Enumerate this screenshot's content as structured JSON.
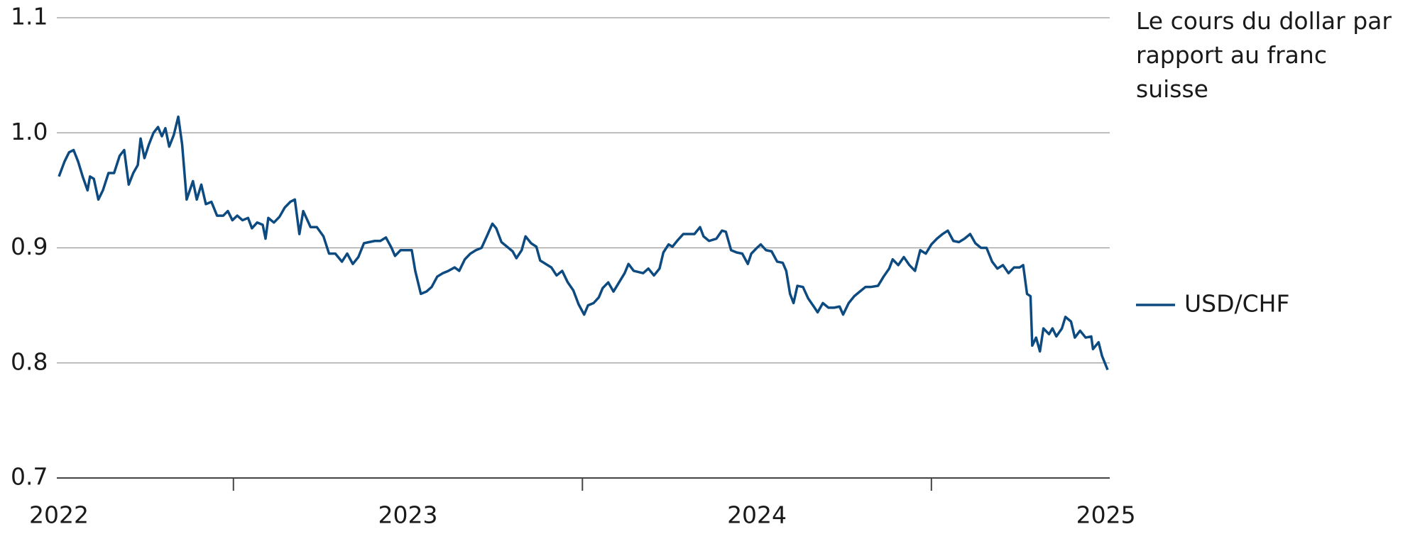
{
  "chart_data": {
    "type": "line",
    "title": "Le cours du dollar par rapport au franc suisse",
    "xlim": [
      2022,
      2025.011
    ],
    "xticks": [
      2022,
      2023,
      2024,
      2025
    ],
    "xminor_ticks": [
      2022.5,
      2023.5,
      2024.5
    ],
    "ylim": [
      0.7,
      1.1
    ],
    "yticks": [
      0.7,
      0.8,
      0.9,
      {
        "value": 1.0,
        "label": "1.0"
      },
      1.1
    ],
    "grid": true,
    "legend": "right",
    "x": [
      2022.0,
      2022.016,
      2022.029,
      2022.042,
      2022.055,
      2022.068,
      2022.082,
      2022.089,
      2022.1,
      2022.113,
      2022.126,
      2022.142,
      2022.158,
      2022.174,
      2022.187,
      2022.2,
      2022.213,
      2022.226,
      2022.234,
      2022.245,
      2022.258,
      2022.271,
      2022.284,
      2022.295,
      2022.305,
      2022.316,
      2022.329,
      2022.342,
      2022.353,
      2022.366,
      2022.384,
      2022.395,
      2022.408,
      2022.421,
      2022.437,
      2022.453,
      2022.471,
      2022.484,
      2022.497,
      2022.511,
      2022.526,
      2022.542,
      2022.553,
      2022.568,
      2022.584,
      2022.592,
      2022.6,
      2022.616,
      2022.632,
      2022.647,
      2022.663,
      2022.676,
      2022.689,
      2022.7,
      2022.721,
      2022.739,
      2022.758,
      2022.774,
      2022.792,
      2022.811,
      2022.826,
      2022.842,
      2022.858,
      2022.874,
      2022.889,
      2022.905,
      2022.921,
      2022.937,
      2022.953,
      2022.963,
      2022.979,
      2022.995,
      2023.011,
      2023.021,
      2023.037,
      2023.053,
      2023.068,
      2023.084,
      2023.1,
      2023.116,
      2023.134,
      2023.147,
      2023.163,
      2023.179,
      2023.195,
      2023.211,
      2023.226,
      2023.242,
      2023.253,
      2023.268,
      2023.284,
      2023.3,
      2023.311,
      2023.326,
      2023.337,
      2023.353,
      2023.368,
      2023.379,
      2023.395,
      2023.411,
      2023.426,
      2023.442,
      2023.458,
      2023.474,
      2023.489,
      2023.505,
      2023.516,
      2023.532,
      2023.547,
      2023.558,
      2023.574,
      2023.589,
      2023.605,
      2023.621,
      2023.632,
      2023.647,
      2023.674,
      2023.689,
      2023.705,
      2023.721,
      2023.732,
      2023.747,
      2023.758,
      2023.774,
      2023.789,
      2023.805,
      2023.821,
      2023.837,
      2023.847,
      2023.863,
      2023.884,
      2023.9,
      2023.911,
      2023.926,
      2023.942,
      2023.958,
      2023.974,
      2023.984,
      2024.0,
      2024.011,
      2024.026,
      2024.042,
      2024.058,
      2024.074,
      2024.084,
      2024.095,
      2024.105,
      2024.116,
      2024.132,
      2024.147,
      2024.163,
      2024.174,
      2024.189,
      2024.205,
      2024.221,
      2024.237,
      2024.247,
      2024.263,
      2024.279,
      2024.295,
      2024.311,
      2024.326,
      2024.347,
      2024.363,
      2024.379,
      2024.389,
      2024.405,
      2024.421,
      2024.437,
      2024.453,
      2024.468,
      2024.484,
      2024.5,
      2024.516,
      2024.532,
      2024.547,
      2024.563,
      2024.579,
      2024.595,
      2024.611,
      2024.626,
      2024.642,
      2024.658,
      2024.674,
      2024.689,
      2024.705,
      2024.721,
      2024.737,
      2024.753,
      2024.763,
      2024.774,
      2024.784,
      2024.789,
      2024.8,
      2024.811,
      2024.821,
      2024.837,
      2024.847,
      2024.858,
      2024.874,
      2024.884,
      2024.9,
      2024.911,
      2024.926,
      2024.942,
      2024.958,
      2024.963,
      2024.979,
      2024.989,
      2025.005
    ],
    "series": [
      {
        "name": "USD/CHF",
        "color": "#0d4a80",
        "values": [
          0.962,
          0.975,
          0.983,
          0.985,
          0.975,
          0.962,
          0.95,
          0.962,
          0.96,
          0.942,
          0.95,
          0.965,
          0.965,
          0.98,
          0.985,
          0.955,
          0.965,
          0.972,
          0.995,
          0.978,
          0.99,
          1.0,
          1.005,
          0.997,
          1.004,
          0.988,
          0.998,
          1.014,
          0.99,
          0.942,
          0.958,
          0.942,
          0.955,
          0.938,
          0.94,
          0.928,
          0.928,
          0.932,
          0.924,
          0.928,
          0.924,
          0.926,
          0.917,
          0.922,
          0.92,
          0.908,
          0.926,
          0.922,
          0.927,
          0.935,
          0.94,
          0.942,
          0.912,
          0.932,
          0.918,
          0.918,
          0.91,
          0.895,
          0.895,
          0.888,
          0.895,
          0.886,
          0.892,
          0.904,
          0.905,
          0.906,
          0.906,
          0.909,
          0.9,
          0.893,
          0.898,
          0.898,
          0.898,
          0.88,
          0.86,
          0.862,
          0.866,
          0.875,
          0.878,
          0.88,
          0.883,
          0.88,
          0.89,
          0.895,
          0.898,
          0.9,
          0.91,
          0.921,
          0.917,
          0.905,
          0.901,
          0.897,
          0.891,
          0.898,
          0.91,
          0.904,
          0.901,
          0.889,
          0.886,
          0.883,
          0.876,
          0.88,
          0.87,
          0.863,
          0.851,
          0.842,
          0.85,
          0.852,
          0.857,
          0.865,
          0.87,
          0.862,
          0.87,
          0.878,
          0.886,
          0.88,
          0.878,
          0.882,
          0.876,
          0.882,
          0.896,
          0.903,
          0.901,
          0.907,
          0.912,
          0.912,
          0.912,
          0.918,
          0.91,
          0.906,
          0.908,
          0.915,
          0.914,
          0.898,
          0.896,
          0.895,
          0.886,
          0.895,
          0.9,
          0.903,
          0.898,
          0.897,
          0.888,
          0.887,
          0.88,
          0.86,
          0.852,
          0.867,
          0.866,
          0.856,
          0.849,
          0.844,
          0.852,
          0.848,
          0.848,
          0.849,
          0.842,
          0.852,
          0.858,
          0.862,
          0.866,
          0.866,
          0.867,
          0.875,
          0.882,
          0.89,
          0.885,
          0.892,
          0.885,
          0.88,
          0.898,
          0.895,
          0.903,
          0.908,
          0.912,
          0.915,
          0.906,
          0.905,
          0.908,
          0.912,
          0.904,
          0.9,
          0.9,
          0.888,
          0.882,
          0.885,
          0.878,
          0.883,
          0.883,
          0.885,
          0.86,
          0.858,
          0.815,
          0.822,
          0.81,
          0.83,
          0.825,
          0.83,
          0.823,
          0.83,
          0.84,
          0.836,
          0.822,
          0.828,
          0.822,
          0.823,
          0.812,
          0.818,
          0.806,
          0.794
        ]
      }
    ]
  }
}
